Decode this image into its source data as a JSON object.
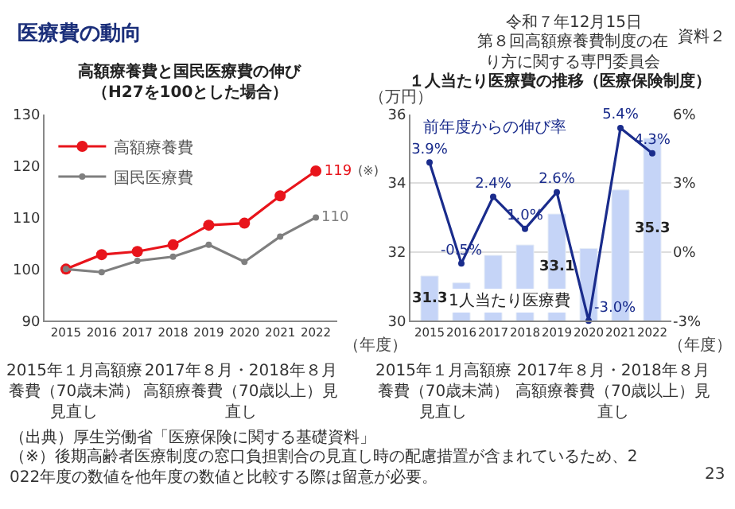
{
  "chart_data": [
    {
      "type": "line",
      "title": "高額療養費と国民医療費の伸び",
      "subtitle": "（H27を100とした場合）",
      "xlabel": "（年度）",
      "categories": [
        "2015",
        "2016",
        "2017",
        "2018",
        "2019",
        "2020",
        "2021",
        "2022"
      ],
      "series": [
        {
          "name": "高額療養費",
          "color": "#e8141b",
          "values": [
            100,
            102.8,
            103.4,
            104.7,
            108.5,
            108.9,
            114.2,
            119
          ],
          "value_labels": [
            null,
            null,
            null,
            null,
            null,
            null,
            null,
            "119"
          ]
        },
        {
          "name": "国民医療費",
          "color": "#7f7f7f",
          "values": [
            100,
            99.4,
            101.6,
            102.4,
            104.7,
            101.4,
            106.3,
            110
          ],
          "value_labels": [
            null,
            null,
            null,
            null,
            null,
            null,
            null,
            "110"
          ]
        }
      ],
      "ylim": [
        90,
        130
      ],
      "yticks": [
        90,
        100,
        110,
        120,
        130
      ],
      "legend": "top left",
      "marker": "circle",
      "annotations": [
        "(※)",
        "2015年１月高額療養費（70歳未満）見直し",
        "2017年８月・2018年８月高額療養費（70歳以上）見直し",
        "医療費の動向",
        "令和７年12月15日",
        "第８回高額療養費制度の在り方に関する専門委員会",
        "資料２",
        "（出典）厚生労働省「医療保険に関する基礎資料」",
        "（※）後期高齢者医療制度の窓口負担割合の見直し時の配慮措置が含まれているため、2022年度の数値を他年度の数値と比較する際は留意が必要。",
        "23"
      ]
    },
    {
      "type": "bar",
      "title": "１人当たり医療費の推移（医療保険制度）",
      "xlabel": "（年度）",
      "ylabel": "（万円）",
      "categories": [
        "2015",
        "2016",
        "2017",
        "2018",
        "2019",
        "2020",
        "2021",
        "2022"
      ],
      "series": [
        {
          "name": "1人当たり医療費",
          "color": "#c5d4f7",
          "values": [
            31.3,
            31.1,
            31.9,
            32.2,
            33.1,
            32.1,
            33.8,
            35.3
          ],
          "value_labels": [
            "31.3",
            null,
            null,
            null,
            "33.1",
            null,
            null,
            "35.3"
          ]
        },
        {
          "name": "前年度からの伸び率",
          "type": "line",
          "axis": "y2",
          "color": "#1a2c8c",
          "values": [
            3.9,
            -0.5,
            2.4,
            1.0,
            2.6,
            -3.0,
            5.4,
            4.3
          ],
          "value_labels": [
            "3.9%",
            "-0.5%",
            "2.4%",
            "1.0%",
            "2.6%",
            "-3.0%",
            "5.4%",
            "4.3%"
          ]
        }
      ],
      "ylim": [
        30,
        36
      ],
      "yticks": [
        30,
        32,
        34,
        36
      ],
      "y2lim": [
        -3,
        6
      ],
      "y2ticks": [
        {
          "value": -3,
          "label": "-3%"
        },
        {
          "value": 0,
          "label": "0%"
        },
        {
          "value": 3,
          "label": "3%"
        },
        {
          "value": 6,
          "label": "6%"
        }
      ],
      "grid": "y",
      "legend": false,
      "marker": "circle",
      "annotations": [
        "2015年１月高額療養費（70歳未満）見直し",
        "2017年８月・2018年８月高額療養費（70歳以上）見直し"
      ]
    }
  ]
}
